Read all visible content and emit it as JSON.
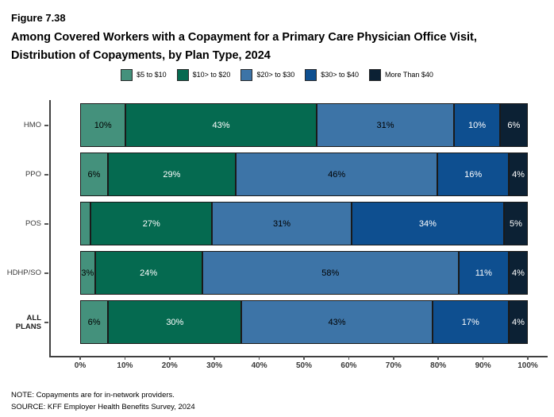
{
  "header": {
    "figure_label": "Figure 7.38",
    "title_line1": "Among Covered Workers with a Copayment for a Primary Care Physician Office Visit,",
    "title_line2": "Distribution of Copayments, by Plan Type, 2024"
  },
  "legend": {
    "items": [
      {
        "label": "$5 to $10",
        "color": "#44917c"
      },
      {
        "label": "$10> to $20",
        "color": "#056a50"
      },
      {
        "label": "$20> to $30",
        "color": "#3d74a7"
      },
      {
        "label": "$30> to $40",
        "color": "#0e4f90"
      },
      {
        "label": "More Than $40",
        "color": "#0c2134"
      }
    ]
  },
  "chart_data": {
    "type": "bar",
    "orientation": "horizontal_stacked",
    "title": "Among Covered Workers with a Copayment for a Primary Care Physician Office Visit, Distribution of Copayments, by Plan Type, 2024",
    "categories": [
      "HMO",
      "PPO",
      "POS",
      "HDHP/SO",
      "ALL PLANS"
    ],
    "series": [
      {
        "name": "$5 to $10",
        "color": "#44917c",
        "label_color": "#000000",
        "values": [
          10,
          6,
          2,
          3,
          6
        ]
      },
      {
        "name": "$10> to $20",
        "color": "#056a50",
        "label_color": "#ffffff",
        "values": [
          43,
          29,
          27,
          24,
          30
        ]
      },
      {
        "name": "$20> to $30",
        "color": "#3d74a7",
        "label_color": "#000000",
        "values": [
          31,
          46,
          31,
          58,
          43
        ]
      },
      {
        "name": "$30> to $40",
        "color": "#0e4f90",
        "label_color": "#ffffff",
        "values": [
          10,
          16,
          34,
          11,
          17
        ]
      },
      {
        "name": "More Than $40",
        "color": "#0c2134",
        "label_color": "#ffffff",
        "values": [
          6,
          4,
          5,
          4,
          4
        ]
      }
    ],
    "rows": [
      {
        "category": "HMO",
        "bold": false,
        "values": [
          10,
          43,
          31,
          10,
          6
        ],
        "labels": [
          "10%",
          "43%",
          "31%",
          "10%",
          "6%"
        ]
      },
      {
        "category": "PPO",
        "bold": false,
        "values": [
          6,
          29,
          46,
          16,
          4
        ],
        "labels": [
          "6%",
          "29%",
          "46%",
          "16%",
          "4%"
        ]
      },
      {
        "category": "POS",
        "bold": false,
        "values": [
          2,
          27,
          31,
          34,
          5
        ],
        "labels": [
          "",
          "27%",
          "31%",
          "34%",
          "5%"
        ]
      },
      {
        "category": "HDHP/SO",
        "bold": false,
        "values": [
          3,
          24,
          58,
          11,
          4
        ],
        "labels": [
          "3%",
          "24%",
          "58%",
          "11%",
          "4%"
        ]
      },
      {
        "category": "ALL PLANS",
        "bold": true,
        "values": [
          6,
          30,
          43,
          17,
          4
        ],
        "labels": [
          "6%",
          "30%",
          "43%",
          "17%",
          "4%"
        ]
      }
    ],
    "x_ticks": [
      "0%",
      "10%",
      "20%",
      "30%",
      "40%",
      "50%",
      "60%",
      "70%",
      "80%",
      "90%",
      "100%"
    ],
    "xlim": [
      0,
      100
    ],
    "grid": false,
    "legend_position": "top"
  },
  "footer": {
    "note": "NOTE: Copayments are for in-network providers.",
    "source": "SOURCE: KFF Employer Health Benefits Survey, 2024"
  }
}
